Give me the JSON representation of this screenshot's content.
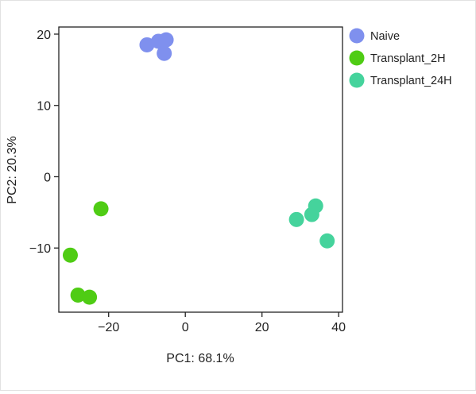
{
  "chart_data": {
    "type": "scatter",
    "title": "",
    "xlabel": "PC1: 68.1%",
    "ylabel": "PC2: 20.3%",
    "xlim": [
      -33,
      41
    ],
    "ylim": [
      -19,
      21
    ],
    "xticks": [
      -20,
      0,
      20,
      40
    ],
    "yticks": [
      -10,
      0,
      10,
      20
    ],
    "xtick_labels": [
      "−20",
      "0",
      "20",
      "40"
    ],
    "ytick_labels": [
      "−10",
      "0",
      "10",
      "20"
    ],
    "grid": false,
    "legend_position": "right",
    "series": [
      {
        "name": "Naive",
        "color": "#7f90ee",
        "points": [
          [
            -10,
            18.5
          ],
          [
            -7,
            19
          ],
          [
            -5,
            19.2
          ],
          [
            -5.5,
            17.3
          ]
        ]
      },
      {
        "name": "Transplant_2H",
        "color": "#4fcc14",
        "points": [
          [
            -22,
            -4.5
          ],
          [
            -30,
            -11
          ],
          [
            -28,
            -16.6
          ],
          [
            -25,
            -16.9
          ]
        ]
      },
      {
        "name": "Transplant_24H",
        "color": "#45d39c",
        "points": [
          [
            29,
            -6
          ],
          [
            33,
            -5.3
          ],
          [
            34,
            -4.1
          ],
          [
            37,
            -9
          ]
        ]
      }
    ]
  }
}
